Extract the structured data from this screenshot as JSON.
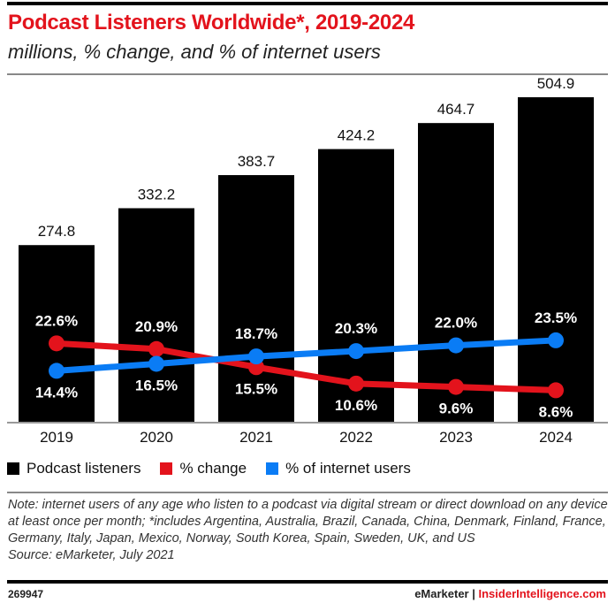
{
  "title": "Podcast Listeners Worldwide*, 2019-2024",
  "subtitle": "millions, % change, and % of internet users",
  "chart_data": {
    "type": "bar",
    "categories": [
      "2019",
      "2020",
      "2021",
      "2022",
      "2023",
      "2024"
    ],
    "series": [
      {
        "name": "Podcast listeners",
        "type": "bar",
        "color": "#000000",
        "values": [
          274.8,
          332.2,
          383.7,
          424.2,
          464.7,
          504.9
        ],
        "labels": [
          "274.8",
          "332.2",
          "383.7",
          "424.2",
          "464.7",
          "504.9"
        ]
      },
      {
        "name": "% change",
        "type": "line",
        "color": "#e3131c",
        "values": [
          22.6,
          20.9,
          15.5,
          10.6,
          9.6,
          8.6
        ],
        "labels": [
          "22.6%",
          "20.9%",
          "15.5%",
          "10.6%",
          "9.6%",
          "8.6%"
        ]
      },
      {
        "name": "% of internet users",
        "type": "line",
        "color": "#0a7cf5",
        "values": [
          14.4,
          16.5,
          18.7,
          20.3,
          22.0,
          23.5
        ],
        "labels": [
          "14.4%",
          "16.5%",
          "18.7%",
          "20.3%",
          "22.0%",
          "23.5%"
        ]
      }
    ],
    "legend_position": "bottom-left",
    "grid": false
  },
  "note": "Note: internet users of any age who listen to a podcast via digital stream or direct download on any device at least once per month; *includes Argentina, Australia, Brazil, Canada, China, Denmark, Finland, France, Germany, Italy, Japan, Mexico, Norway, South Korea, Spain, Sweden, UK, and US",
  "source": "Source: eMarketer, July 2021",
  "chart_id": "269947",
  "brand_left": "eMarketer",
  "brand_sep": " | ",
  "brand_right": "InsiderIntelligence.com"
}
